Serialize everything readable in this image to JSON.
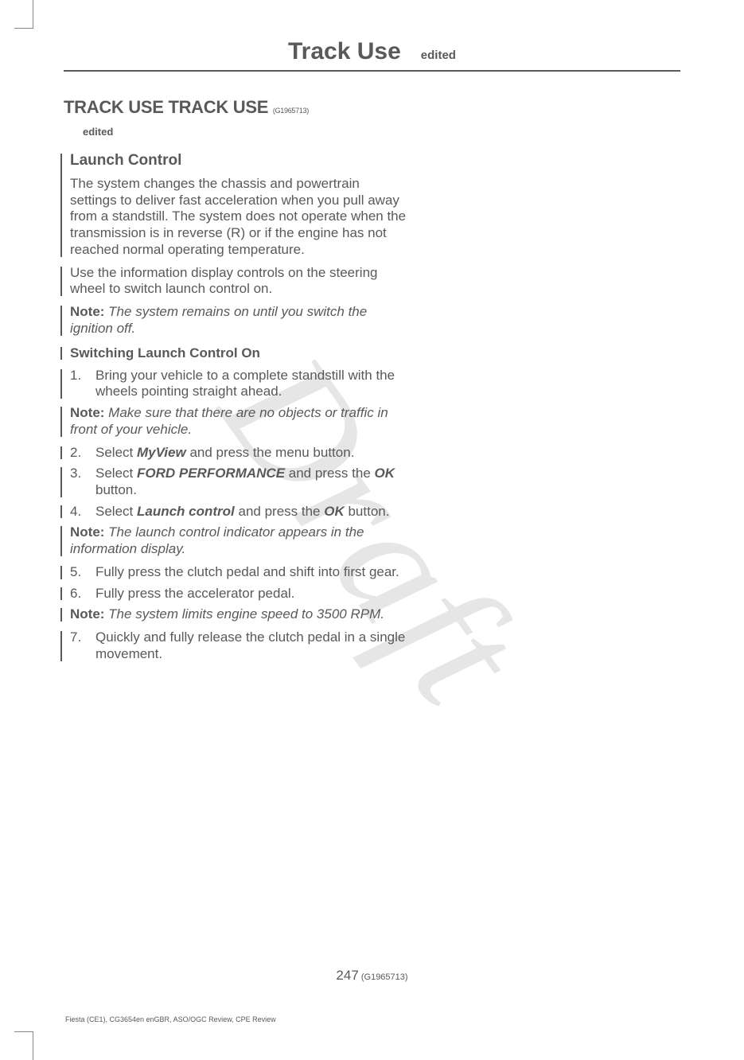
{
  "watermark": "Draft",
  "header": {
    "title": "Track Use",
    "sub": "edited"
  },
  "section": {
    "title": "TRACK USE TRACK USE",
    "code": "(G1965713)",
    "edited": "edited"
  },
  "h2_launch": "Launch Control",
  "para1": "The system changes the chassis and powertrain settings to deliver fast acceleration when you pull away from a standstill.   The system does not operate when the transmission is in reverse (R) or if the engine has not reached normal operating temperature.",
  "para2": "Use the information display controls on the steering wheel to switch launch control on.",
  "note1_label": "Note:",
  "note1_text": "  The system remains on until you switch the ignition off.",
  "h3_switching": "Switching Launch Control On",
  "step1": "Bring your vehicle to a complete standstill with the wheels pointing straight ahead.",
  "note2_label": "Note:",
  "note2_text": "  Make sure that there are no objects or traffic in front of your vehicle.",
  "step2_a": "Select ",
  "step2_b": "MyView",
  "step2_c": " and press the menu button.",
  "step3_a": "Select ",
  "step3_b": "FORD PERFORMANCE",
  "step3_c": " and press the ",
  "step3_d": "OK",
  "step3_e": " button.",
  "step4_a": "Select ",
  "step4_b": "Launch control",
  "step4_c": " and press the ",
  "step4_d": "OK",
  "step4_e": " button.",
  "note3_label": "Note:",
  "note3_text": "  The launch control indicator appears in the information display.",
  "step5": "Fully press the clutch pedal and shift into first gear.",
  "step6": "Fully press the accelerator pedal.",
  "note4_label": "Note:",
  "note4_text": "  The system limits engine speed to 3500 RPM.",
  "step7": "Quickly and fully release the clutch pedal in a single movement.",
  "page_number": "247",
  "page_code": " (G1965713)",
  "footer": "Fiesta (CE1), CG3654en enGBR, ASO/OGC Review, CPE Review"
}
